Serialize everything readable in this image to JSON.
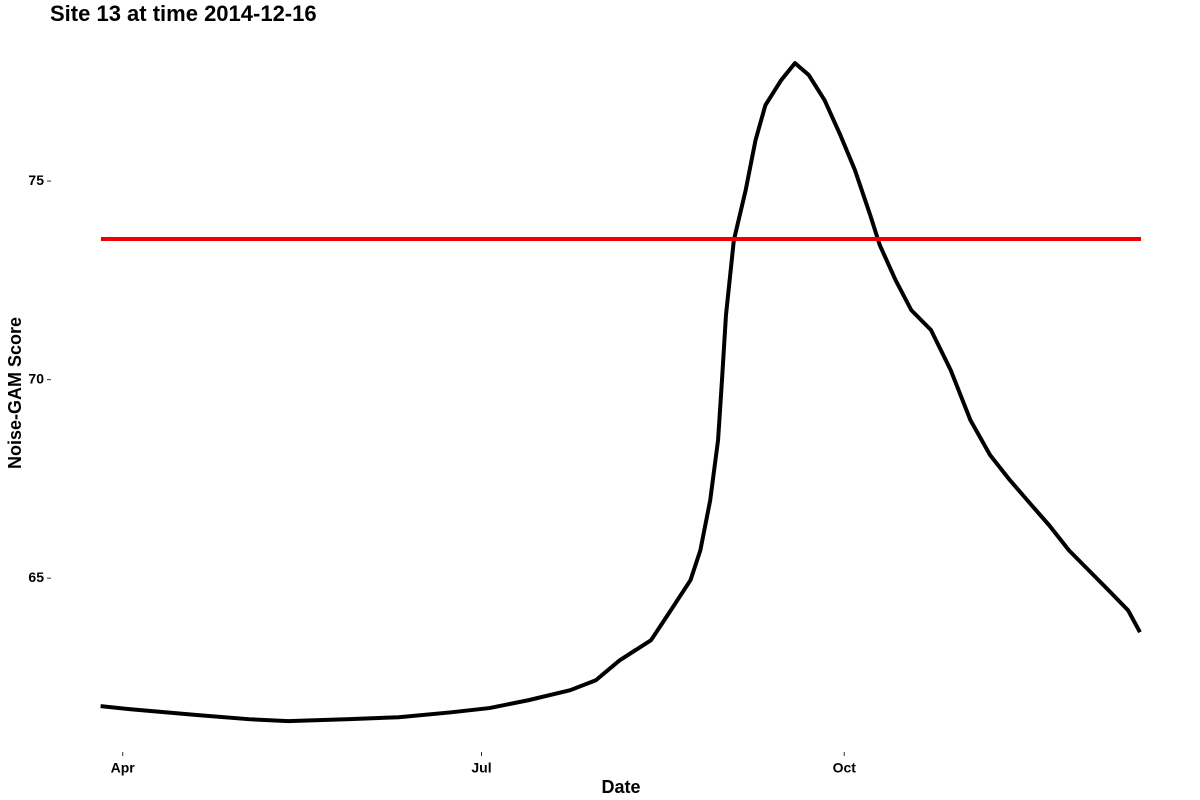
{
  "chart_data": {
    "type": "line",
    "title": "Site 13 at time 2014-12-16",
    "xlabel": "Date",
    "ylabel": "Noise-GAM Score",
    "x": [
      85.4,
      93,
      110.5,
      123,
      133,
      148.6,
      161,
      174,
      184,
      194,
      204.5,
      211,
      217,
      225,
      230,
      235,
      237.5,
      240,
      242,
      243,
      244,
      246,
      249,
      251.5,
      254,
      258,
      261.5,
      265,
      269,
      273,
      276.7,
      280.6,
      283,
      287,
      291,
      296,
      301,
      306,
      311,
      316,
      321.5,
      326,
      331,
      336,
      341,
      346,
      349
    ],
    "series": [
      {
        "name": "Noise-GAM Score",
        "color": "#000000",
        "values": [
          61.78,
          61.7,
          61.55,
          61.45,
          61.4,
          61.45,
          61.5,
          61.62,
          61.73,
          61.93,
          62.18,
          62.43,
          62.93,
          63.44,
          64.19,
          64.95,
          65.7,
          66.96,
          68.48,
          70.0,
          71.62,
          73.51,
          74.77,
          76.03,
          76.91,
          77.54,
          77.97,
          77.67,
          77.04,
          76.16,
          75.28,
          74.14,
          73.39,
          72.51,
          71.75,
          71.25,
          70.24,
          68.98,
          68.1,
          67.47,
          66.84,
          66.33,
          65.7,
          65.2,
          64.7,
          64.19,
          63.64
        ]
      }
    ],
    "hline": {
      "value": 73.54,
      "color": "#ee0000"
    },
    "xlim": [
      71.8,
      362.2
    ],
    "xticks": [
      {
        "value": 91,
        "label": "Apr"
      },
      {
        "value": 182,
        "label": "Jul"
      },
      {
        "value": 274,
        "label": "Oct"
      }
    ],
    "ylim": [
      60.8,
      78.3
    ],
    "yticks": [
      65,
      70,
      75
    ],
    "grid": false
  }
}
